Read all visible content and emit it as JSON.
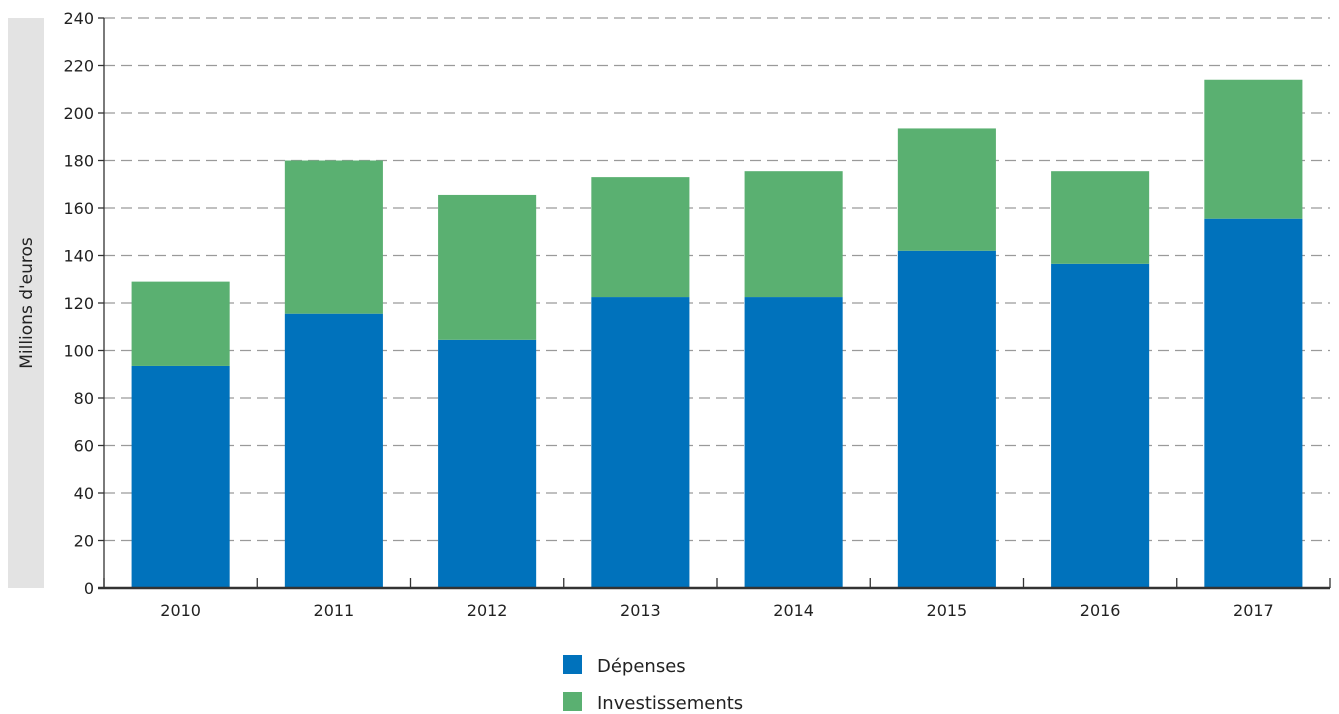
{
  "chart_data": {
    "type": "bar",
    "stacked": true,
    "title": "",
    "xlabel": "",
    "ylabel": "Millions d'euros",
    "categories": [
      "2010",
      "2011",
      "2012",
      "2013",
      "2014",
      "2015",
      "2016",
      "2017"
    ],
    "series": [
      {
        "name": "Dépenses",
        "color": "#0072BC",
        "values": [
          93.5,
          115.5,
          104.5,
          122.5,
          122.5,
          142,
          136.5,
          155.5
        ]
      },
      {
        "name": "Investissements",
        "color": "#5AB071",
        "values": [
          35.5,
          64.5,
          61,
          50.5,
          53,
          51.5,
          39,
          58.5
        ]
      }
    ],
    "ylim": [
      0,
      240
    ],
    "yticks": [
      "0",
      "20",
      "40",
      "60",
      "80",
      "100",
      "120",
      "140",
      "160",
      "180",
      "200",
      "220",
      "240"
    ],
    "grid": true,
    "legend_position": "bottom"
  }
}
